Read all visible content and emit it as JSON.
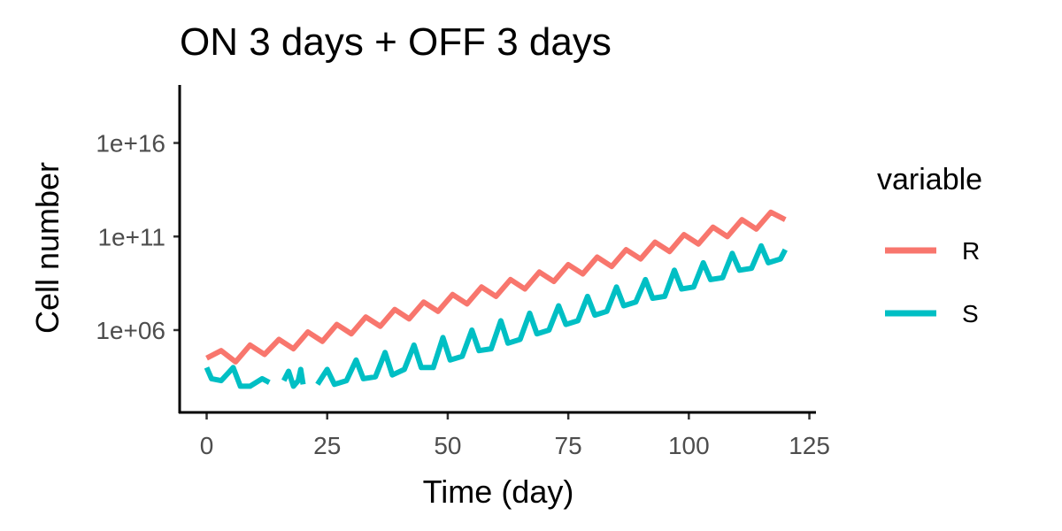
{
  "chart_data": {
    "type": "line",
    "title": "ON 3 days + OFF 3 days",
    "xlabel": "Time (day)",
    "ylabel": "Cell number",
    "xlim": [
      -5.6,
      126
    ],
    "ylim_log10": [
      1.6,
      19.1
    ],
    "yscale": "log10",
    "x_ticks": [
      0,
      25,
      50,
      75,
      100,
      125
    ],
    "x_tick_labels": [
      "0",
      "25",
      "50",
      "75",
      "100",
      "125"
    ],
    "y_ticks_log10": [
      6,
      11,
      16
    ],
    "y_tick_labels": [
      "1e+06",
      "1e+11",
      "1e+16"
    ],
    "legend": {
      "title": "variable",
      "position": "right"
    },
    "series": [
      {
        "name": "R",
        "color": "#F8766D",
        "segments": [
          [
            [
              0,
              4.5
            ],
            [
              3,
              4.9
            ],
            [
              6,
              4.3
            ],
            [
              9,
              5.2
            ],
            [
              12,
              4.7
            ],
            [
              15,
              5.5
            ],
            [
              18,
              5.0
            ],
            [
              21,
              5.9
            ],
            [
              24,
              5.4
            ],
            [
              27,
              6.3
            ],
            [
              30,
              5.8
            ],
            [
              33,
              6.7
            ],
            [
              36,
              6.2
            ],
            [
              39,
              7.1
            ],
            [
              42,
              6.6
            ],
            [
              45,
              7.5
            ],
            [
              48,
              7.0
            ],
            [
              51,
              7.9
            ],
            [
              54,
              7.4
            ],
            [
              57,
              8.3
            ],
            [
              60,
              7.8
            ],
            [
              63,
              8.7
            ],
            [
              66,
              8.2
            ],
            [
              69,
              9.1
            ],
            [
              72,
              8.6
            ],
            [
              75,
              9.5
            ],
            [
              78,
              9.0
            ],
            [
              81,
              9.9
            ],
            [
              84,
              9.4
            ],
            [
              87,
              10.3
            ],
            [
              90,
              9.8
            ],
            [
              93,
              10.7
            ],
            [
              96,
              10.2
            ],
            [
              99,
              11.1
            ],
            [
              102,
              10.6
            ],
            [
              105,
              11.5
            ],
            [
              108,
              11.0
            ],
            [
              111,
              11.9
            ],
            [
              114,
              11.4
            ],
            [
              117,
              12.3
            ],
            [
              120,
              11.9
            ]
          ]
        ]
      },
      {
        "name": "S",
        "color": "#00BFC4",
        "segments": [
          [
            [
              0,
              4.0
            ],
            [
              1,
              3.4
            ],
            [
              3,
              3.3
            ],
            [
              5.5,
              4.0
            ],
            [
              7,
              3.0
            ],
            [
              9,
              3.0
            ],
            [
              11.5,
              3.4
            ],
            [
              13,
              3.2
            ]
          ],
          [
            [
              16,
              3.3
            ],
            [
              17,
              3.8
            ],
            [
              18,
              3.0
            ],
            [
              19,
              3.3
            ],
            [
              19.5,
              3.9
            ],
            [
              20,
              3.1
            ]
          ],
          [
            [
              23,
              3.1
            ],
            [
              25,
              3.9
            ],
            [
              26.5,
              3.1
            ],
            [
              29,
              3.3
            ],
            [
              31,
              4.4
            ],
            [
              32.5,
              3.4
            ],
            [
              35,
              3.5
            ],
            [
              37,
              4.8
            ],
            [
              38.5,
              3.6
            ],
            [
              41,
              3.9
            ],
            [
              43,
              5.2
            ],
            [
              44.5,
              4.0
            ],
            [
              47,
              4.0
            ],
            [
              49,
              5.6
            ],
            [
              50.5,
              4.4
            ],
            [
              53,
              4.6
            ],
            [
              55,
              6.0
            ],
            [
              56.5,
              4.9
            ],
            [
              59,
              5.0
            ],
            [
              61,
              6.5
            ],
            [
              62.5,
              5.3
            ],
            [
              65,
              5.5
            ],
            [
              67,
              6.9
            ],
            [
              68.5,
              5.8
            ],
            [
              71,
              6.0
            ],
            [
              73,
              7.3
            ],
            [
              74.5,
              6.3
            ],
            [
              77,
              6.5
            ],
            [
              79,
              7.8
            ],
            [
              80.5,
              6.8
            ],
            [
              83,
              7.0
            ],
            [
              85,
              8.3
            ],
            [
              86.5,
              7.3
            ],
            [
              89,
              7.5
            ],
            [
              91,
              8.7
            ],
            [
              92.5,
              7.7
            ],
            [
              95,
              7.8
            ],
            [
              97,
              9.2
            ],
            [
              98.5,
              8.2
            ],
            [
              101,
              8.3
            ],
            [
              103,
              9.6
            ],
            [
              104.5,
              8.7
            ],
            [
              107,
              8.8
            ],
            [
              109,
              10.1
            ],
            [
              110.5,
              9.2
            ],
            [
              113,
              9.3
            ],
            [
              115,
              10.5
            ],
            [
              116.5,
              9.6
            ],
            [
              119,
              9.8
            ],
            [
              120,
              10.3
            ]
          ]
        ]
      }
    ]
  }
}
